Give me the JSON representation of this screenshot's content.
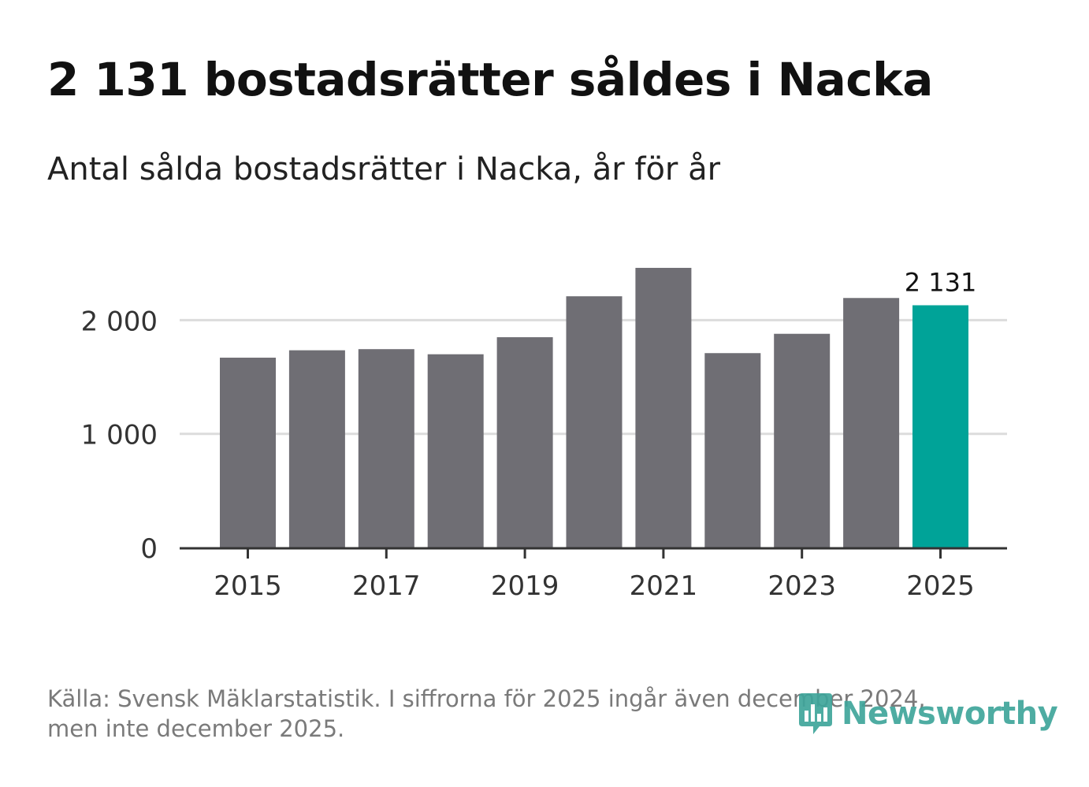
{
  "title": "2 131 bostadsrätter såldes i Nacka",
  "subtitle": "Antal sålda bostadsrätter i Nacka, år för år",
  "footnote": {
    "line1": "Källa: Svensk Mäklarstatistik. I siffrorna för 2025 ingår även december 2024,",
    "line2": "men inte december 2025."
  },
  "logo": {
    "text": "Newsworthy",
    "icon": "newsworthy-logo-icon",
    "color": "#3fa59b"
  },
  "colors": {
    "bar": "#6f6e74",
    "highlight": "#00a398",
    "grid": "#dcdcdc",
    "axis": "#333333",
    "tick_text": "#333333"
  },
  "chart_data": {
    "type": "bar",
    "categories": [
      "2015",
      "2016",
      "2017",
      "2018",
      "2019",
      "2020",
      "2021",
      "2022",
      "2023",
      "2024",
      "2025"
    ],
    "values": [
      1670,
      1735,
      1745,
      1700,
      1850,
      2210,
      2460,
      1710,
      1880,
      2195,
      2131
    ],
    "highlight_index": 10,
    "data_labels": [
      {
        "index": 10,
        "text": "2 131"
      }
    ],
    "x_tick_labels": [
      "2015",
      "2017",
      "2019",
      "2021",
      "2023",
      "2025"
    ],
    "y_ticks": [
      {
        "value": 0,
        "label": "0"
      },
      {
        "value": 1000,
        "label": "1 000"
      },
      {
        "value": 2000,
        "label": "2 000"
      }
    ],
    "ylim": [
      0,
      2600
    ],
    "xlabel": "",
    "ylabel": "",
    "grid": true
  }
}
